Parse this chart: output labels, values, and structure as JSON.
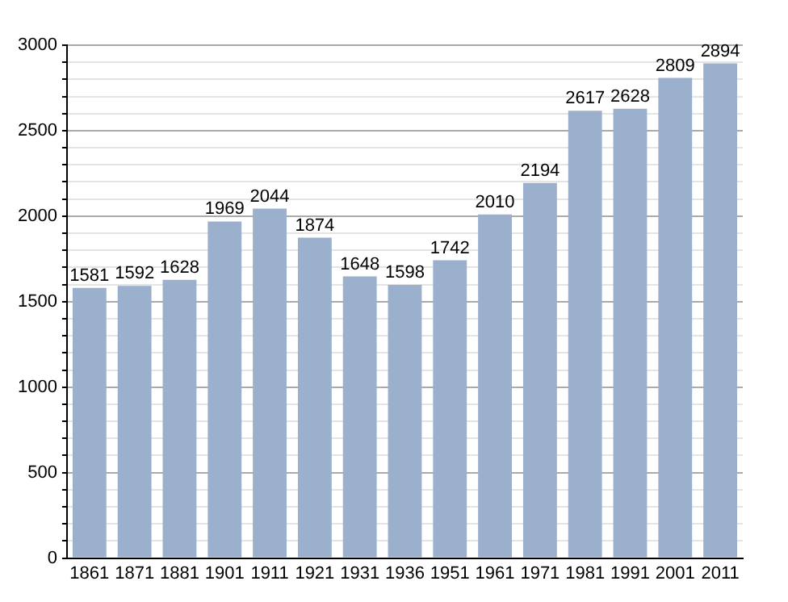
{
  "chart_data": {
    "type": "bar",
    "categories": [
      "1861",
      "1871",
      "1881",
      "1901",
      "1911",
      "1921",
      "1931",
      "1936",
      "1951",
      "1961",
      "1971",
      "1981",
      "1991",
      "2001",
      "2011"
    ],
    "values": [
      1581,
      1592,
      1628,
      1969,
      2044,
      1874,
      1648,
      1598,
      1742,
      2010,
      2194,
      2617,
      2628,
      2809,
      2894
    ],
    "color": "#9ab0cc",
    "ylim": [
      0,
      3000
    ],
    "yticks": [
      0,
      {
        "value": 100,
        "label": null
      },
      {
        "value": 200,
        "label": null
      },
      {
        "value": 300,
        "label": null
      },
      {
        "value": 400,
        "label": null
      },
      500,
      {
        "value": 600,
        "label": null
      },
      {
        "value": 700,
        "label": null
      },
      {
        "value": 800,
        "label": null
      },
      {
        "value": 900,
        "label": null
      },
      1000,
      {
        "value": 1100,
        "label": null
      },
      {
        "value": 1200,
        "label": null
      },
      {
        "value": 1300,
        "label": null
      },
      {
        "value": 1400,
        "label": null
      },
      1500,
      {
        "value": 1600,
        "label": null
      },
      {
        "value": 1700,
        "label": null
      },
      {
        "value": 1800,
        "label": null
      },
      {
        "value": 1900,
        "label": null
      },
      2000,
      {
        "value": 2100,
        "label": null
      },
      {
        "value": 2200,
        "label": null
      },
      {
        "value": 2300,
        "label": null
      },
      {
        "value": 2400,
        "label": null
      },
      2500,
      {
        "value": 2600,
        "label": null
      },
      {
        "value": 2700,
        "label": null
      },
      {
        "value": 2800,
        "label": null
      },
      {
        "value": 2900,
        "label": null
      },
      3000
    ],
    "grid": "y",
    "data_labels": true
  }
}
